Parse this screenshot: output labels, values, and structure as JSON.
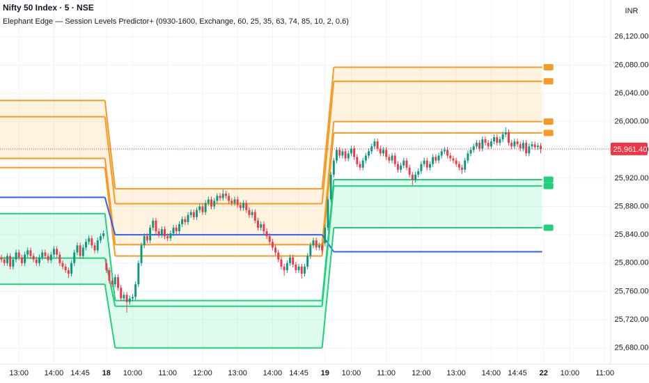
{
  "chart_data": {
    "type": "candlestick",
    "title": "Nifty 50 Index · 5 · NSE",
    "subtitle": "Elephant Edge — Session Levels Predictor+ (0930-1600, Exchange, 60, 25, 35, 63, 74, 85, 10, 2, 0.6)",
    "currency": "INR",
    "up_color": "#089981",
    "down_color": "#f23645",
    "xlim": [
      -0.5,
      209
    ],
    "ylim": [
      25657,
      26172
    ],
    "yticks": [
      {
        "value": 26120,
        "label": "26,120.00"
      },
      {
        "value": 26080,
        "label": "26,080.00"
      },
      {
        "value": 26040,
        "label": "26,040.00"
      },
      {
        "value": 26000,
        "label": "26,000.00"
      },
      {
        "value": 25960,
        "label": "25,960.00"
      },
      {
        "value": 25920,
        "label": "25,920.00"
      },
      {
        "value": 25880,
        "label": "25,880.00"
      },
      {
        "value": 25840,
        "label": "25,840.00"
      },
      {
        "value": 25800,
        "label": "25,800.00"
      },
      {
        "value": 25760,
        "label": "25,760.00"
      },
      {
        "value": 25720,
        "label": "25,720.00"
      },
      {
        "value": 25680,
        "label": "25,680.00"
      }
    ],
    "xticks": [
      {
        "value": 6,
        "label": "13:00"
      },
      {
        "value": 18,
        "label": "14:00"
      },
      {
        "value": 27,
        "label": "14:45"
      },
      {
        "value": 36,
        "label": "18"
      },
      {
        "value": 45,
        "label": "10:00"
      },
      {
        "value": 57,
        "label": "11:00"
      },
      {
        "value": 69,
        "label": "12:00"
      },
      {
        "value": 81,
        "label": "13:00"
      },
      {
        "value": 93,
        "label": "14:00"
      },
      {
        "value": 102,
        "label": "14:45"
      },
      {
        "value": 111,
        "label": "19"
      },
      {
        "value": 120,
        "label": "10:00"
      },
      {
        "value": 132,
        "label": "11:00"
      },
      {
        "value": 144,
        "label": "12:00"
      },
      {
        "value": 156,
        "label": "13:00"
      },
      {
        "value": 168,
        "label": "14:00"
      },
      {
        "value": 177,
        "label": "14:45"
      },
      {
        "value": 186,
        "label": "22"
      },
      {
        "value": 195,
        "label": "10:00"
      },
      {
        "value": 207,
        "label": "11:00"
      }
    ],
    "grid": true,
    "last_price": {
      "value": 25961.4,
      "label": "25,961.40",
      "color": "#f23645"
    },
    "levels": [
      {
        "color": "#f59a23",
        "values": [
          26030,
          25905,
          26077
        ]
      },
      {
        "color": "#f59a23",
        "values": [
          26007,
          25884,
          26057
        ]
      },
      {
        "color": "#f59a23",
        "values": [
          25948,
          25826,
          26000
        ]
      },
      {
        "color": "#f59a23",
        "values": [
          25935,
          25810,
          25984
        ]
      },
      {
        "color": "#2962ff",
        "values": [
          25893,
          25840,
          25816
        ]
      },
      {
        "color": "#22cf7a",
        "values": [
          25870,
          25747,
          25918
        ]
      },
      {
        "color": "#22cf7a",
        "values": [
          25807,
          25739,
          25909
        ]
      },
      {
        "color": "#22cf7a",
        "values": [
          25770,
          25680,
          25850
        ]
      }
    ],
    "candles": [
      [
        25808,
        25812,
        25801,
        25805
      ],
      [
        25805,
        25809,
        25796,
        25800
      ],
      [
        25800,
        25814,
        25796,
        25810
      ],
      [
        25810,
        25814,
        25791,
        25795
      ],
      [
        25795,
        25809,
        25791,
        25805
      ],
      [
        25805,
        25819,
        25801,
        25815
      ],
      [
        25815,
        25819,
        25804,
        25808
      ],
      [
        25808,
        25812,
        25796,
        25800
      ],
      [
        25800,
        25816,
        25796,
        25812
      ],
      [
        25812,
        25822,
        25808,
        25818
      ],
      [
        25818,
        25822,
        25806,
        25810
      ],
      [
        25810,
        25814,
        25801,
        25805
      ],
      [
        25805,
        25809,
        25796,
        25800
      ],
      [
        25800,
        25812,
        25796,
        25808
      ],
      [
        25808,
        25819,
        25804,
        25815
      ],
      [
        25815,
        25819,
        25806,
        25810
      ],
      [
        25810,
        25814,
        25800,
        25804
      ],
      [
        25804,
        25816,
        25800,
        25812
      ],
      [
        25812,
        25824,
        25808,
        25820
      ],
      [
        25820,
        25824,
        25808,
        25812
      ],
      [
        25812,
        25816,
        25796,
        25800
      ],
      [
        25800,
        25804,
        25791,
        25795
      ],
      [
        25795,
        25799,
        25786,
        25790
      ],
      [
        25790,
        25794,
        25779,
        25785
      ],
      [
        25785,
        25804,
        25781,
        25800
      ],
      [
        25800,
        25819,
        25796,
        25815
      ],
      [
        25815,
        25829,
        25811,
        25825
      ],
      [
        25825,
        25829,
        25806,
        25810
      ],
      [
        25810,
        25826,
        25806,
        25822
      ],
      [
        25822,
        25834,
        25818,
        25830
      ],
      [
        25830,
        25839,
        25826,
        25835
      ],
      [
        25835,
        25839,
        25821,
        25825
      ],
      [
        25825,
        25829,
        25814,
        25818
      ],
      [
        25818,
        25836,
        25814,
        25832
      ],
      [
        25832,
        25842,
        25828,
        25838
      ],
      [
        25838,
        25846,
        25834,
        25842
      ],
      [
        25800,
        25806,
        25786,
        25790
      ],
      [
        25790,
        25794,
        25771,
        25775
      ],
      [
        25775,
        25779,
        25766,
        25770
      ],
      [
        25770,
        25784,
        25766,
        25780
      ],
      [
        25780,
        25784,
        25761,
        25765
      ],
      [
        25765,
        25769,
        25746,
        25750
      ],
      [
        25750,
        25759,
        25746,
        25755
      ],
      [
        25755,
        25759,
        25730,
        25745
      ],
      [
        25745,
        25754,
        25741,
        25750
      ],
      [
        25750,
        25756,
        25746,
        25752
      ],
      [
        25752,
        25774,
        25748,
        25770
      ],
      [
        25770,
        25804,
        25766,
        25800
      ],
      [
        25800,
        25829,
        25796,
        25825
      ],
      [
        25825,
        25842,
        25821,
        25838
      ],
      [
        25838,
        25842,
        25828,
        25832
      ],
      [
        25832,
        25854,
        25828,
        25850
      ],
      [
        25850,
        25864,
        25846,
        25860
      ],
      [
        25860,
        25864,
        25841,
        25845
      ],
      [
        25845,
        25849,
        25836,
        25840
      ],
      [
        25840,
        25852,
        25836,
        25848
      ],
      [
        25848,
        25852,
        25834,
        25838
      ],
      [
        25838,
        25842,
        25831,
        25835
      ],
      [
        25835,
        25846,
        25831,
        25842
      ],
      [
        25842,
        25854,
        25838,
        25850
      ],
      [
        25850,
        25854,
        25841,
        25845
      ],
      [
        25845,
        25859,
        25841,
        25855
      ],
      [
        25855,
        25866,
        25851,
        25862
      ],
      [
        25862,
        25866,
        25854,
        25858
      ],
      [
        25858,
        25872,
        25854,
        25868
      ],
      [
        25868,
        25876,
        25864,
        25872
      ],
      [
        25872,
        25876,
        25861,
        25865
      ],
      [
        25865,
        25879,
        25861,
        25875
      ],
      [
        25875,
        25884,
        25871,
        25880
      ],
      [
        25880,
        25884,
        25868,
        25872
      ],
      [
        25872,
        25889,
        25868,
        25885
      ],
      [
        25885,
        25894,
        25881,
        25890
      ],
      [
        25890,
        25894,
        25876,
        25880
      ],
      [
        25880,
        25892,
        25876,
        25888
      ],
      [
        25888,
        25899,
        25884,
        25895
      ],
      [
        25895,
        25899,
        25888,
        25892
      ],
      [
        25892,
        25904,
        25888,
        25898
      ],
      [
        25898,
        25902,
        25891,
        25895
      ],
      [
        25895,
        25899,
        25884,
        25888
      ],
      [
        25888,
        25892,
        25881,
        25885
      ],
      [
        25885,
        25894,
        25881,
        25890
      ],
      [
        25890,
        25894,
        25878,
        25882
      ],
      [
        25882,
        25886,
        25874,
        25878
      ],
      [
        25878,
        25889,
        25874,
        25885
      ],
      [
        25885,
        25889,
        25871,
        25875
      ],
      [
        25875,
        25879,
        25864,
        25868
      ],
      [
        25868,
        25876,
        25864,
        25872
      ],
      [
        25872,
        25876,
        25856,
        25860
      ],
      [
        25860,
        25864,
        25846,
        25850
      ],
      [
        25850,
        25859,
        25846,
        25855
      ],
      [
        25855,
        25859,
        25841,
        25845
      ],
      [
        25845,
        25849,
        25834,
        25838
      ],
      [
        25838,
        25842,
        25826,
        25830
      ],
      [
        25830,
        25834,
        25818,
        25822
      ],
      [
        25822,
        25826,
        25811,
        25815
      ],
      [
        25815,
        25819,
        25801,
        25805
      ],
      [
        25805,
        25809,
        25791,
        25795
      ],
      [
        25795,
        25799,
        25782,
        25790
      ],
      [
        25790,
        25804,
        25786,
        25800
      ],
      [
        25800,
        25812,
        25796,
        25808
      ],
      [
        25808,
        25812,
        25794,
        25798
      ],
      [
        25798,
        25802,
        25786,
        25790
      ],
      [
        25790,
        25799,
        25786,
        25795
      ],
      [
        25795,
        25799,
        25778,
        25785
      ],
      [
        25785,
        25799,
        25781,
        25795
      ],
      [
        25795,
        25814,
        25791,
        25810
      ],
      [
        25810,
        25829,
        25806,
        25825
      ],
      [
        25825,
        25836,
        25821,
        25832
      ],
      [
        25832,
        25836,
        25818,
        25822
      ],
      [
        25822,
        25829,
        25818,
        25825
      ],
      [
        25825,
        25829,
        25814,
        25818
      ],
      [
        25828,
        25854,
        25824,
        25850
      ],
      [
        25850,
        25894,
        25846,
        25890
      ],
      [
        25890,
        25929,
        25886,
        25925
      ],
      [
        25925,
        25949,
        25921,
        25945
      ],
      [
        25945,
        25964,
        25941,
        25960
      ],
      [
        25960,
        25964,
        25948,
        25952
      ],
      [
        25952,
        25962,
        25948,
        25958
      ],
      [
        25958,
        25962,
        25944,
        25948
      ],
      [
        25948,
        25959,
        25944,
        25955
      ],
      [
        25955,
        25966,
        25951,
        25962
      ],
      [
        25962,
        25966,
        25946,
        25950
      ],
      [
        25950,
        25954,
        25936,
        25940
      ],
      [
        25940,
        25944,
        25931,
        25935
      ],
      [
        25935,
        25949,
        25931,
        25945
      ],
      [
        25945,
        25956,
        25941,
        25952
      ],
      [
        25952,
        25962,
        25948,
        25958
      ],
      [
        25958,
        25969,
        25954,
        25965
      ],
      [
        25965,
        25976,
        25961,
        25972
      ],
      [
        25972,
        25976,
        25958,
        25962
      ],
      [
        25962,
        25966,
        25951,
        25955
      ],
      [
        25955,
        25964,
        25951,
        25960
      ],
      [
        25960,
        25964,
        25946,
        25950
      ],
      [
        25950,
        25954,
        25941,
        25945
      ],
      [
        25945,
        25956,
        25941,
        25952
      ],
      [
        25952,
        25956,
        25936,
        25940
      ],
      [
        25940,
        25944,
        25928,
        25932
      ],
      [
        25932,
        25942,
        25928,
        25938
      ],
      [
        25938,
        25949,
        25934,
        25945
      ],
      [
        25945,
        25949,
        25931,
        25935
      ],
      [
        25935,
        25939,
        25921,
        25925
      ],
      [
        25925,
        25929,
        25910,
        25918
      ],
      [
        25918,
        25929,
        25914,
        25925
      ],
      [
        25925,
        25934,
        25921,
        25930
      ],
      [
        25930,
        25944,
        25926,
        25940
      ],
      [
        25940,
        25949,
        25936,
        25945
      ],
      [
        25945,
        25949,
        25931,
        25935
      ],
      [
        25935,
        25944,
        25931,
        25940
      ],
      [
        25940,
        25954,
        25936,
        25950
      ],
      [
        25950,
        25954,
        25941,
        25945
      ],
      [
        25945,
        25956,
        25941,
        25952
      ],
      [
        25952,
        25962,
        25948,
        25958
      ],
      [
        25958,
        25964,
        25954,
        25960
      ],
      [
        25960,
        25964,
        25948,
        25952
      ],
      [
        25952,
        25956,
        25944,
        25948
      ],
      [
        25948,
        25952,
        25941,
        25945
      ],
      [
        25945,
        25949,
        25936,
        25940
      ],
      [
        25940,
        25944,
        25931,
        25935
      ],
      [
        25935,
        25939,
        25926,
        25932
      ],
      [
        25932,
        25949,
        25928,
        25945
      ],
      [
        25945,
        25959,
        25941,
        25955
      ],
      [
        25955,
        25964,
        25951,
        25960
      ],
      [
        25960,
        25969,
        25956,
        25965
      ],
      [
        25965,
        25974,
        25961,
        25970
      ],
      [
        25970,
        25974,
        25958,
        25962
      ],
      [
        25962,
        25979,
        25958,
        25975
      ],
      [
        25975,
        25979,
        25966,
        25970
      ],
      [
        25970,
        25974,
        25961,
        25965
      ],
      [
        25965,
        25976,
        25961,
        25972
      ],
      [
        25972,
        25982,
        25968,
        25978
      ],
      [
        25978,
        25982,
        25966,
        25970
      ],
      [
        25970,
        25979,
        25966,
        25975
      ],
      [
        25975,
        25986,
        25971,
        25982
      ],
      [
        25982,
        25992,
        25978,
        25985
      ],
      [
        25985,
        25989,
        25966,
        25970
      ],
      [
        25970,
        25974,
        25961,
        25965
      ],
      [
        25965,
        25976,
        25961,
        25972
      ],
      [
        25972,
        25976,
        25964,
        25968
      ],
      [
        25968,
        25972,
        25958,
        25962
      ],
      [
        25962,
        25974,
        25958,
        25970
      ],
      [
        25970,
        25974,
        25951,
        25955
      ],
      [
        25955,
        25969,
        25951,
        25965
      ],
      [
        25965,
        25972,
        25961,
        25968
      ],
      [
        25968,
        25972,
        25960,
        25964
      ],
      [
        25964,
        25970,
        25960,
        25966
      ],
      [
        25966,
        25970,
        25955,
        25961.4
      ]
    ]
  }
}
